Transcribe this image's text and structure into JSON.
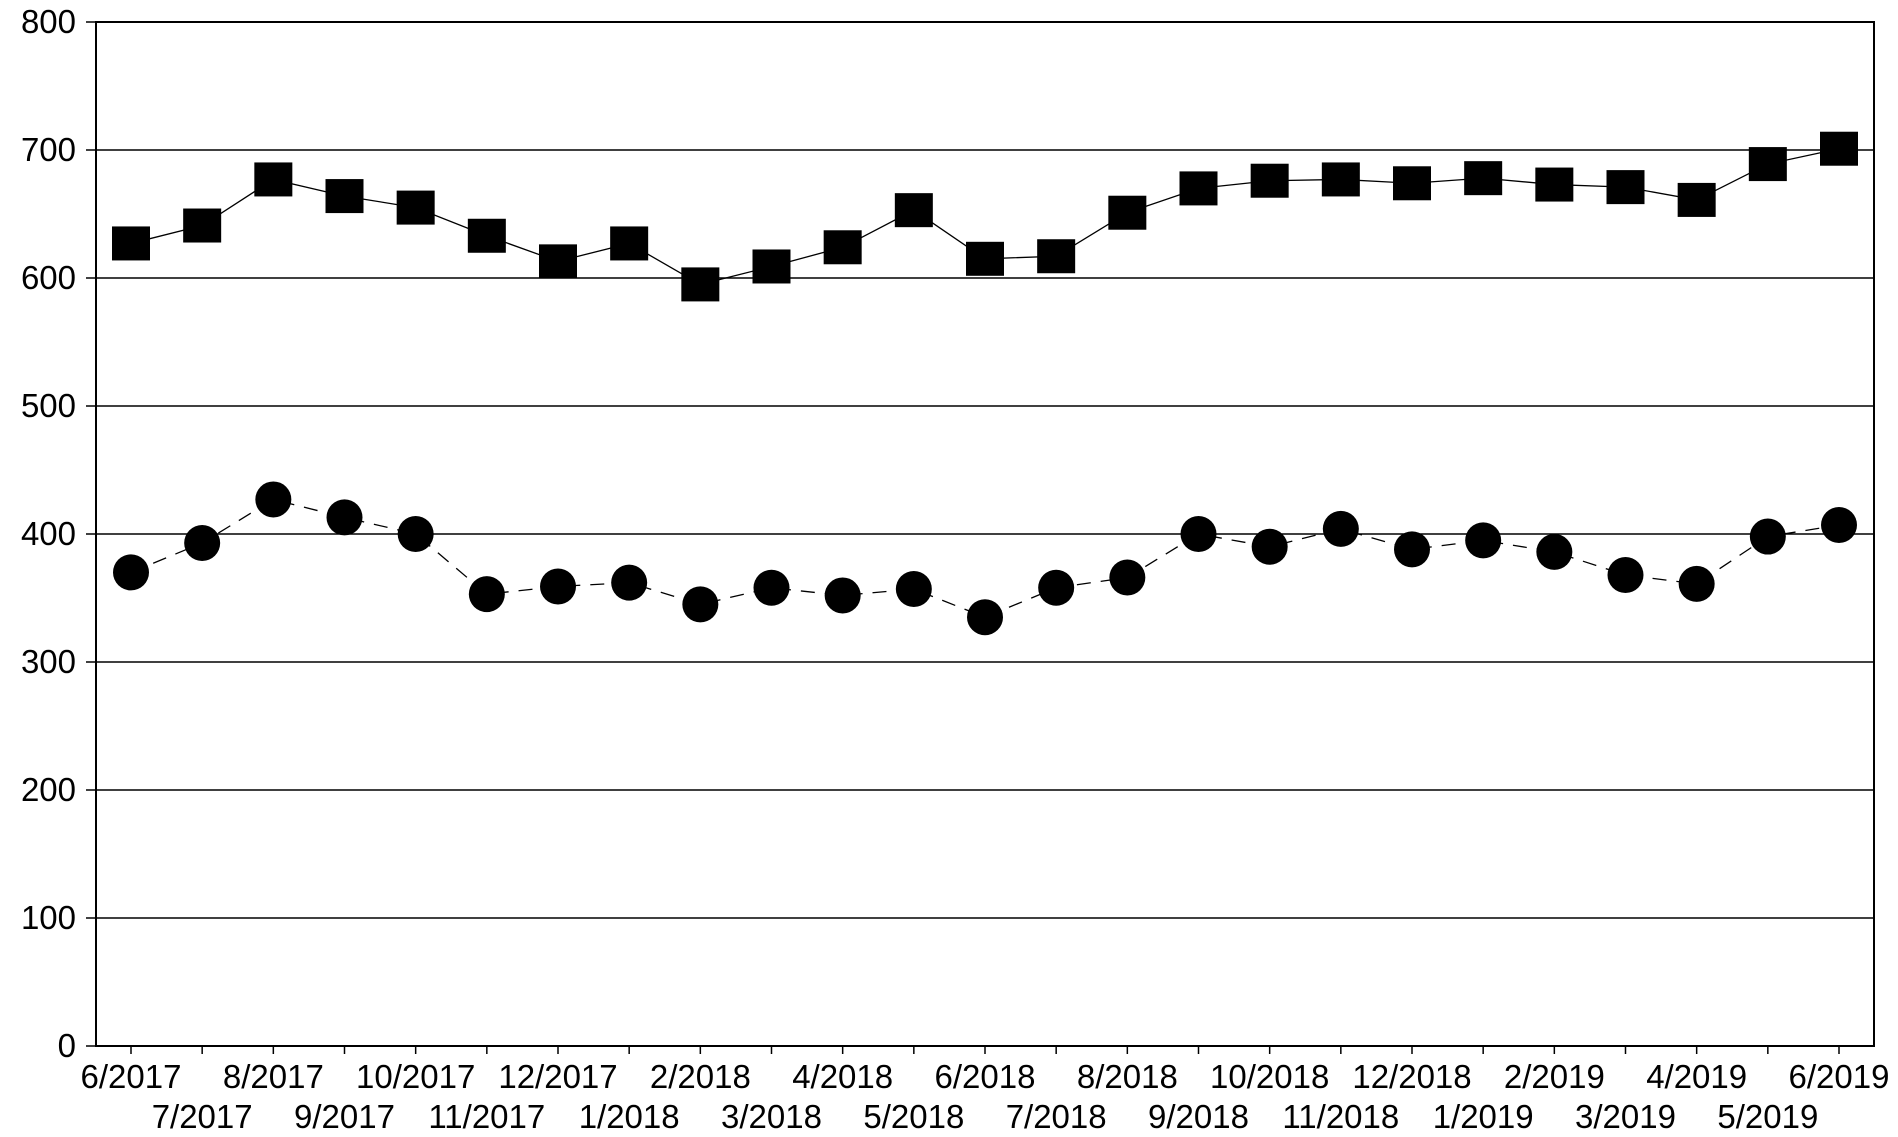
{
  "chart_data": {
    "type": "line",
    "title": "",
    "xlabel": "",
    "ylabel": "",
    "ylim": [
      0,
      800
    ],
    "yticks": [
      "0",
      "100",
      "200",
      "300",
      "400",
      "500",
      "600",
      "700",
      "800"
    ],
    "grid": "horizontal",
    "legend": "none",
    "categories": [
      "6/2017",
      "7/2017",
      "8/2017",
      "9/2017",
      "10/2017",
      "11/2017",
      "12/2017",
      "1/2018",
      "2/2018",
      "3/2018",
      "4/2018",
      "5/2018",
      "6/2018",
      "7/2018",
      "8/2018",
      "9/2018",
      "10/2018",
      "11/2018",
      "12/2018",
      "1/2019",
      "2/2019",
      "3/2019",
      "4/2019",
      "5/2019",
      "6/2019"
    ],
    "series": [
      {
        "marker": "square",
        "line": "solid",
        "color": "#000000",
        "values": [
          627,
          641,
          677,
          664,
          655,
          633,
          613,
          627,
          595,
          609,
          624,
          653,
          615,
          617,
          651,
          670,
          676,
          677,
          674,
          678,
          673,
          671,
          661,
          689,
          701
        ]
      },
      {
        "marker": "circle",
        "line": "dashed",
        "color": "#000000",
        "values": [
          370,
          393,
          427,
          413,
          400,
          353,
          359,
          362,
          345,
          358,
          352,
          357,
          335,
          358,
          366,
          400,
          390,
          404,
          388,
          395,
          386,
          368,
          361,
          398,
          407
        ]
      }
    ]
  }
}
